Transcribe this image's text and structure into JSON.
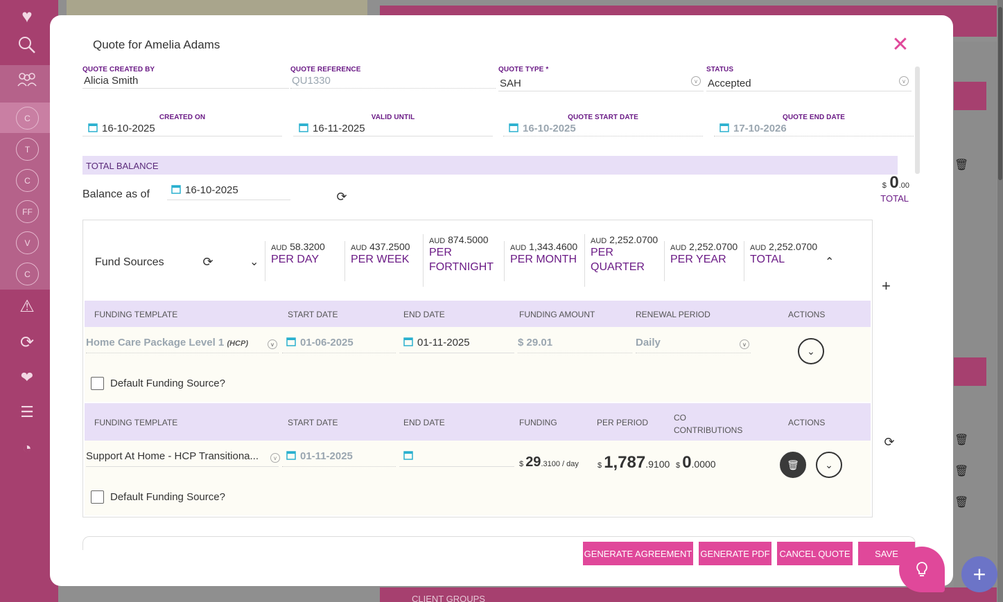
{
  "modal": {
    "title": "Quote for Amelia Adams",
    "fields": {
      "created_by_label": "QUOTE CREATED BY",
      "created_by": "Alicia Smith",
      "reference_label": "QUOTE REFERENCE",
      "reference": "QU1330",
      "type_label": "QUOTE TYPE *",
      "type": "SAH",
      "status_label": "STATUS",
      "status": "Accepted",
      "created_on_label": "CREATED ON",
      "created_on": "16-10-2025",
      "valid_until_label": "VALID UNTIL",
      "valid_until": "16-11-2025",
      "start_label": "QUOTE START DATE",
      "start": "16-10-2025",
      "end_label": "QUOTE END DATE",
      "end": "17-10-2026"
    },
    "total_balance": {
      "header": "TOTAL BALANCE",
      "balance_as_of_label": "Balance as of",
      "balance_date": "16-10-2025",
      "currency": "$",
      "amount_main": "0",
      "amount_cents": ".00",
      "total_label": "TOTAL"
    },
    "fund_sources": {
      "title": "Fund Sources",
      "stats": [
        {
          "cur": "AUD",
          "amt": "58.3200",
          "period": "PER DAY"
        },
        {
          "cur": "AUD",
          "amt": "437.2500",
          "period": "PER WEEK"
        },
        {
          "cur": "AUD",
          "amt": "874.5000",
          "period": "PER FORTNIGHT"
        },
        {
          "cur": "AUD",
          "amt": "1,343.4600",
          "period": "PER MONTH"
        },
        {
          "cur": "AUD",
          "amt": "2,252.0700",
          "period": "PER QUARTER"
        },
        {
          "cur": "AUD",
          "amt": "2,252.0700",
          "period": "PER YEAR"
        },
        {
          "cur": "AUD",
          "amt": "2,252.0700",
          "period": "TOTAL"
        }
      ],
      "table1": {
        "headers": [
          "FUNDING TEMPLATE",
          "START DATE",
          "END DATE",
          "FUNDING AMOUNT",
          "RENEWAL PERIOD",
          "ACTIONS"
        ],
        "template": "Home Care Package Level 1",
        "template_tag": "(HCP)",
        "start": "01-06-2025",
        "end": "01-11-2025",
        "amount": "$ 29.01",
        "renewal": "Daily",
        "default_label": "Default Funding Source?"
      },
      "table2": {
        "headers": [
          "FUNDING TEMPLATE",
          "START DATE",
          "END DATE",
          "FUNDING",
          "PER PERIOD",
          "CO CONTRIBUTIONS",
          "ACTIONS"
        ],
        "template": "Support At Home - HCP Transitiona...",
        "start": "01-11-2025",
        "end": "",
        "funding_main": "29",
        "funding_cents": ".3100",
        "funding_suffix": "/ day",
        "per_period_main": "1,787",
        "per_period_cents": ".9100",
        "co_main": "0",
        "co_cents": ".0000",
        "default_label": "Default Funding Source?"
      }
    },
    "buttons": {
      "generate_agreement": "GENERATE AGREEMENT",
      "generate_pdf": "GENERATE PDF",
      "cancel_quote": "CANCEL QUOTE",
      "save": "SAVE"
    }
  },
  "background": {
    "sidebar_circles": [
      "C",
      "T",
      "C",
      "FF",
      "V",
      "C"
    ],
    "bottom_label": "CLIENT GROUPS"
  },
  "colors": {
    "accent": "#e0489a",
    "purple": "#6b1b86",
    "band": "#e8dff7",
    "sidebar": "#a6406f"
  }
}
